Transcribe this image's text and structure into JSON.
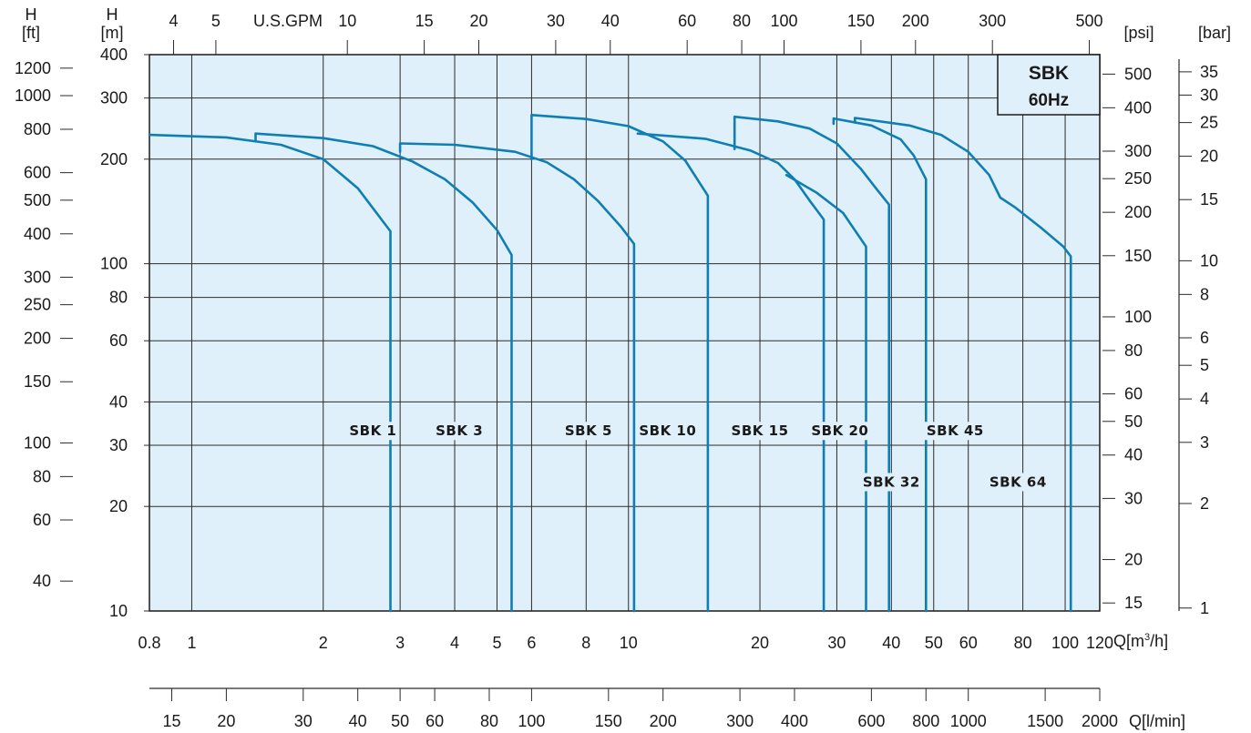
{
  "chart_data": {
    "type": "line",
    "box": {
      "title": "SBK",
      "subtitle": "60Hz"
    },
    "x_axis_main": {
      "unit_label": "Q[m³/h]",
      "scale": "log",
      "range": [
        0.8,
        120
      ],
      "ticks": [
        0.8,
        1,
        2,
        3,
        4,
        5,
        6,
        8,
        10,
        20,
        30,
        40,
        50,
        60,
        80,
        100,
        120
      ],
      "tick_labels": [
        "0.8",
        "1",
        "2",
        "3",
        "4",
        "5",
        "6",
        "8",
        "10",
        "20",
        "30",
        "40",
        "50",
        "60",
        "80",
        "100",
        "120"
      ],
      "grid": true
    },
    "x_axis_gpm": {
      "unit_label": "U.S.GPM",
      "scale": "log",
      "ticks": [
        4,
        5,
        10,
        15,
        20,
        30,
        40,
        60,
        80,
        100,
        150,
        200,
        300,
        500
      ],
      "tick_labels": [
        "4",
        "5",
        "10",
        "15",
        "20",
        "30",
        "40",
        "60",
        "80",
        "100",
        "150",
        "200",
        "300",
        "500"
      ]
    },
    "x_axis_lpm": {
      "unit_label": "Q[l/min]",
      "scale": "log",
      "ticks": [
        15,
        20,
        30,
        40,
        50,
        60,
        80,
        100,
        150,
        200,
        300,
        400,
        600,
        800,
        1000,
        1500,
        2000
      ],
      "tick_labels": [
        "15",
        "20",
        "30",
        "40",
        "50",
        "60",
        "80",
        "100",
        "150",
        "200",
        "300",
        "400",
        "600",
        "800",
        "1000",
        "1500",
        "2000"
      ]
    },
    "y_axis_m": {
      "label_top": "H",
      "label_unit": "[m]",
      "scale": "log",
      "range": [
        10,
        400
      ],
      "ticks": [
        10,
        20,
        30,
        40,
        60,
        80,
        100,
        200,
        300,
        400
      ],
      "tick_labels": [
        "10",
        "20",
        "30",
        "40",
        "60",
        "80",
        "100",
        "200",
        "300",
        "400"
      ],
      "grid": true
    },
    "y_axis_ft": {
      "label_top": "H",
      "label_unit": "[ft]",
      "scale": "log",
      "ticks": [
        40,
        60,
        80,
        100,
        150,
        200,
        250,
        300,
        400,
        500,
        600,
        800,
        1000,
        1200
      ],
      "tick_labels": [
        "40",
        "60",
        "80",
        "100",
        "150",
        "200",
        "250",
        "300",
        "400",
        "500",
        "600",
        "800",
        "1000",
        "1200"
      ]
    },
    "y_axis_psi": {
      "label_unit": "[psi]",
      "scale": "log",
      "ticks": [
        15,
        20,
        30,
        40,
        50,
        60,
        80,
        100,
        150,
        200,
        250,
        300,
        400,
        500
      ],
      "tick_labels": [
        "15",
        "20",
        "30",
        "40",
        "50",
        "60",
        "80",
        "100",
        "150",
        "200",
        "250",
        "300",
        "400",
        "500"
      ]
    },
    "y_axis_bar": {
      "label_unit": "[bar]",
      "scale": "log",
      "ticks": [
        1,
        2,
        3,
        4,
        5,
        6,
        8,
        10,
        15,
        20,
        25,
        30,
        35
      ],
      "tick_labels": [
        "1",
        "2",
        "3",
        "4",
        "5",
        "6",
        "8",
        "10",
        "15",
        "20",
        "25",
        "30",
        "35"
      ]
    },
    "series": [
      {
        "name": "SBK 1",
        "label_pos": [
          2.6,
          33
        ],
        "points": [
          [
            0.8,
            235
          ],
          [
            1.2,
            231
          ],
          [
            1.6,
            220
          ],
          [
            2.0,
            200
          ],
          [
            2.4,
            165
          ],
          [
            2.85,
            124
          ],
          [
            2.85,
            10
          ]
        ]
      },
      {
        "name": "SBK 3",
        "label_pos": [
          4.1,
          33
        ],
        "points": [
          [
            1.4,
            225
          ],
          [
            1.4,
            237
          ],
          [
            2.0,
            230
          ],
          [
            2.6,
            218
          ],
          [
            3.2,
            197
          ],
          [
            3.8,
            175
          ],
          [
            4.4,
            150
          ],
          [
            5.0,
            125
          ],
          [
            5.4,
            106
          ],
          [
            5.4,
            10
          ]
        ]
      },
      {
        "name": "SBK 5",
        "label_pos": [
          8.1,
          33
        ],
        "points": [
          [
            3.0,
            210
          ],
          [
            3.0,
            222
          ],
          [
            4.0,
            220
          ],
          [
            5.5,
            210
          ],
          [
            6.5,
            196
          ],
          [
            7.5,
            175
          ],
          [
            8.5,
            152
          ],
          [
            9.6,
            128
          ],
          [
            10.3,
            114
          ],
          [
            10.3,
            10
          ]
        ]
      },
      {
        "name": "SBK 10",
        "label_pos": [
          12.3,
          33
        ],
        "points": [
          [
            6.0,
            200
          ],
          [
            6.0,
            268
          ],
          [
            8.0,
            261
          ],
          [
            10.0,
            249
          ],
          [
            12.0,
            225
          ],
          [
            13.5,
            198
          ],
          [
            15.2,
            157
          ],
          [
            15.2,
            10
          ]
        ]
      },
      {
        "name": "SBK 15",
        "label_pos": [
          20.0,
          33
        ],
        "points": [
          [
            10.5,
            237
          ],
          [
            15.0,
            229
          ],
          [
            19.0,
            212
          ],
          [
            22.0,
            195
          ],
          [
            24.0,
            175
          ],
          [
            26.0,
            152
          ],
          [
            28.0,
            134
          ],
          [
            28.0,
            10
          ]
        ]
      },
      {
        "name": "SBK 20",
        "label_pos": [
          30.5,
          33
        ],
        "points": [
          [
            17.5,
            214
          ],
          [
            17.5,
            265
          ],
          [
            22.0,
            257
          ],
          [
            26.0,
            245
          ],
          [
            30.0,
            222
          ],
          [
            34.0,
            188
          ],
          [
            37.0,
            164
          ],
          [
            39.5,
            148
          ],
          [
            39.5,
            10
          ]
        ]
      },
      {
        "name": "SBK 32",
        "label_pos": [
          40.0,
          23.5
        ],
        "points": [
          [
            23.0,
            180
          ],
          [
            27.0,
            160
          ],
          [
            31.0,
            140
          ],
          [
            35.0,
            112
          ],
          [
            35.0,
            10
          ]
        ]
      },
      {
        "name": "SBK 45",
        "label_pos": [
          56.0,
          33
        ],
        "points": [
          [
            29.5,
            253
          ],
          [
            29.5,
            262
          ],
          [
            36.0,
            250
          ],
          [
            42.0,
            228
          ],
          [
            45.0,
            205
          ],
          [
            48.0,
            175
          ],
          [
            48.0,
            10
          ]
        ]
      },
      {
        "name": "SBK 64",
        "label_pos": [
          78.0,
          23.5
        ],
        "points": [
          [
            33.0,
            255
          ],
          [
            33.0,
            263
          ],
          [
            44.0,
            250
          ],
          [
            52.0,
            235
          ],
          [
            60.0,
            210
          ],
          [
            67.0,
            180
          ],
          [
            71.0,
            155
          ],
          [
            77.0,
            145
          ],
          [
            88.0,
            127
          ],
          [
            99.0,
            112
          ],
          [
            103.0,
            105
          ],
          [
            103.0,
            10
          ]
        ]
      }
    ],
    "colors": {
      "curve": "#0f7fb3",
      "plot_bg": "#dff0fa",
      "grid": "#2a2a2a",
      "axis": "#1a1a1a"
    }
  }
}
